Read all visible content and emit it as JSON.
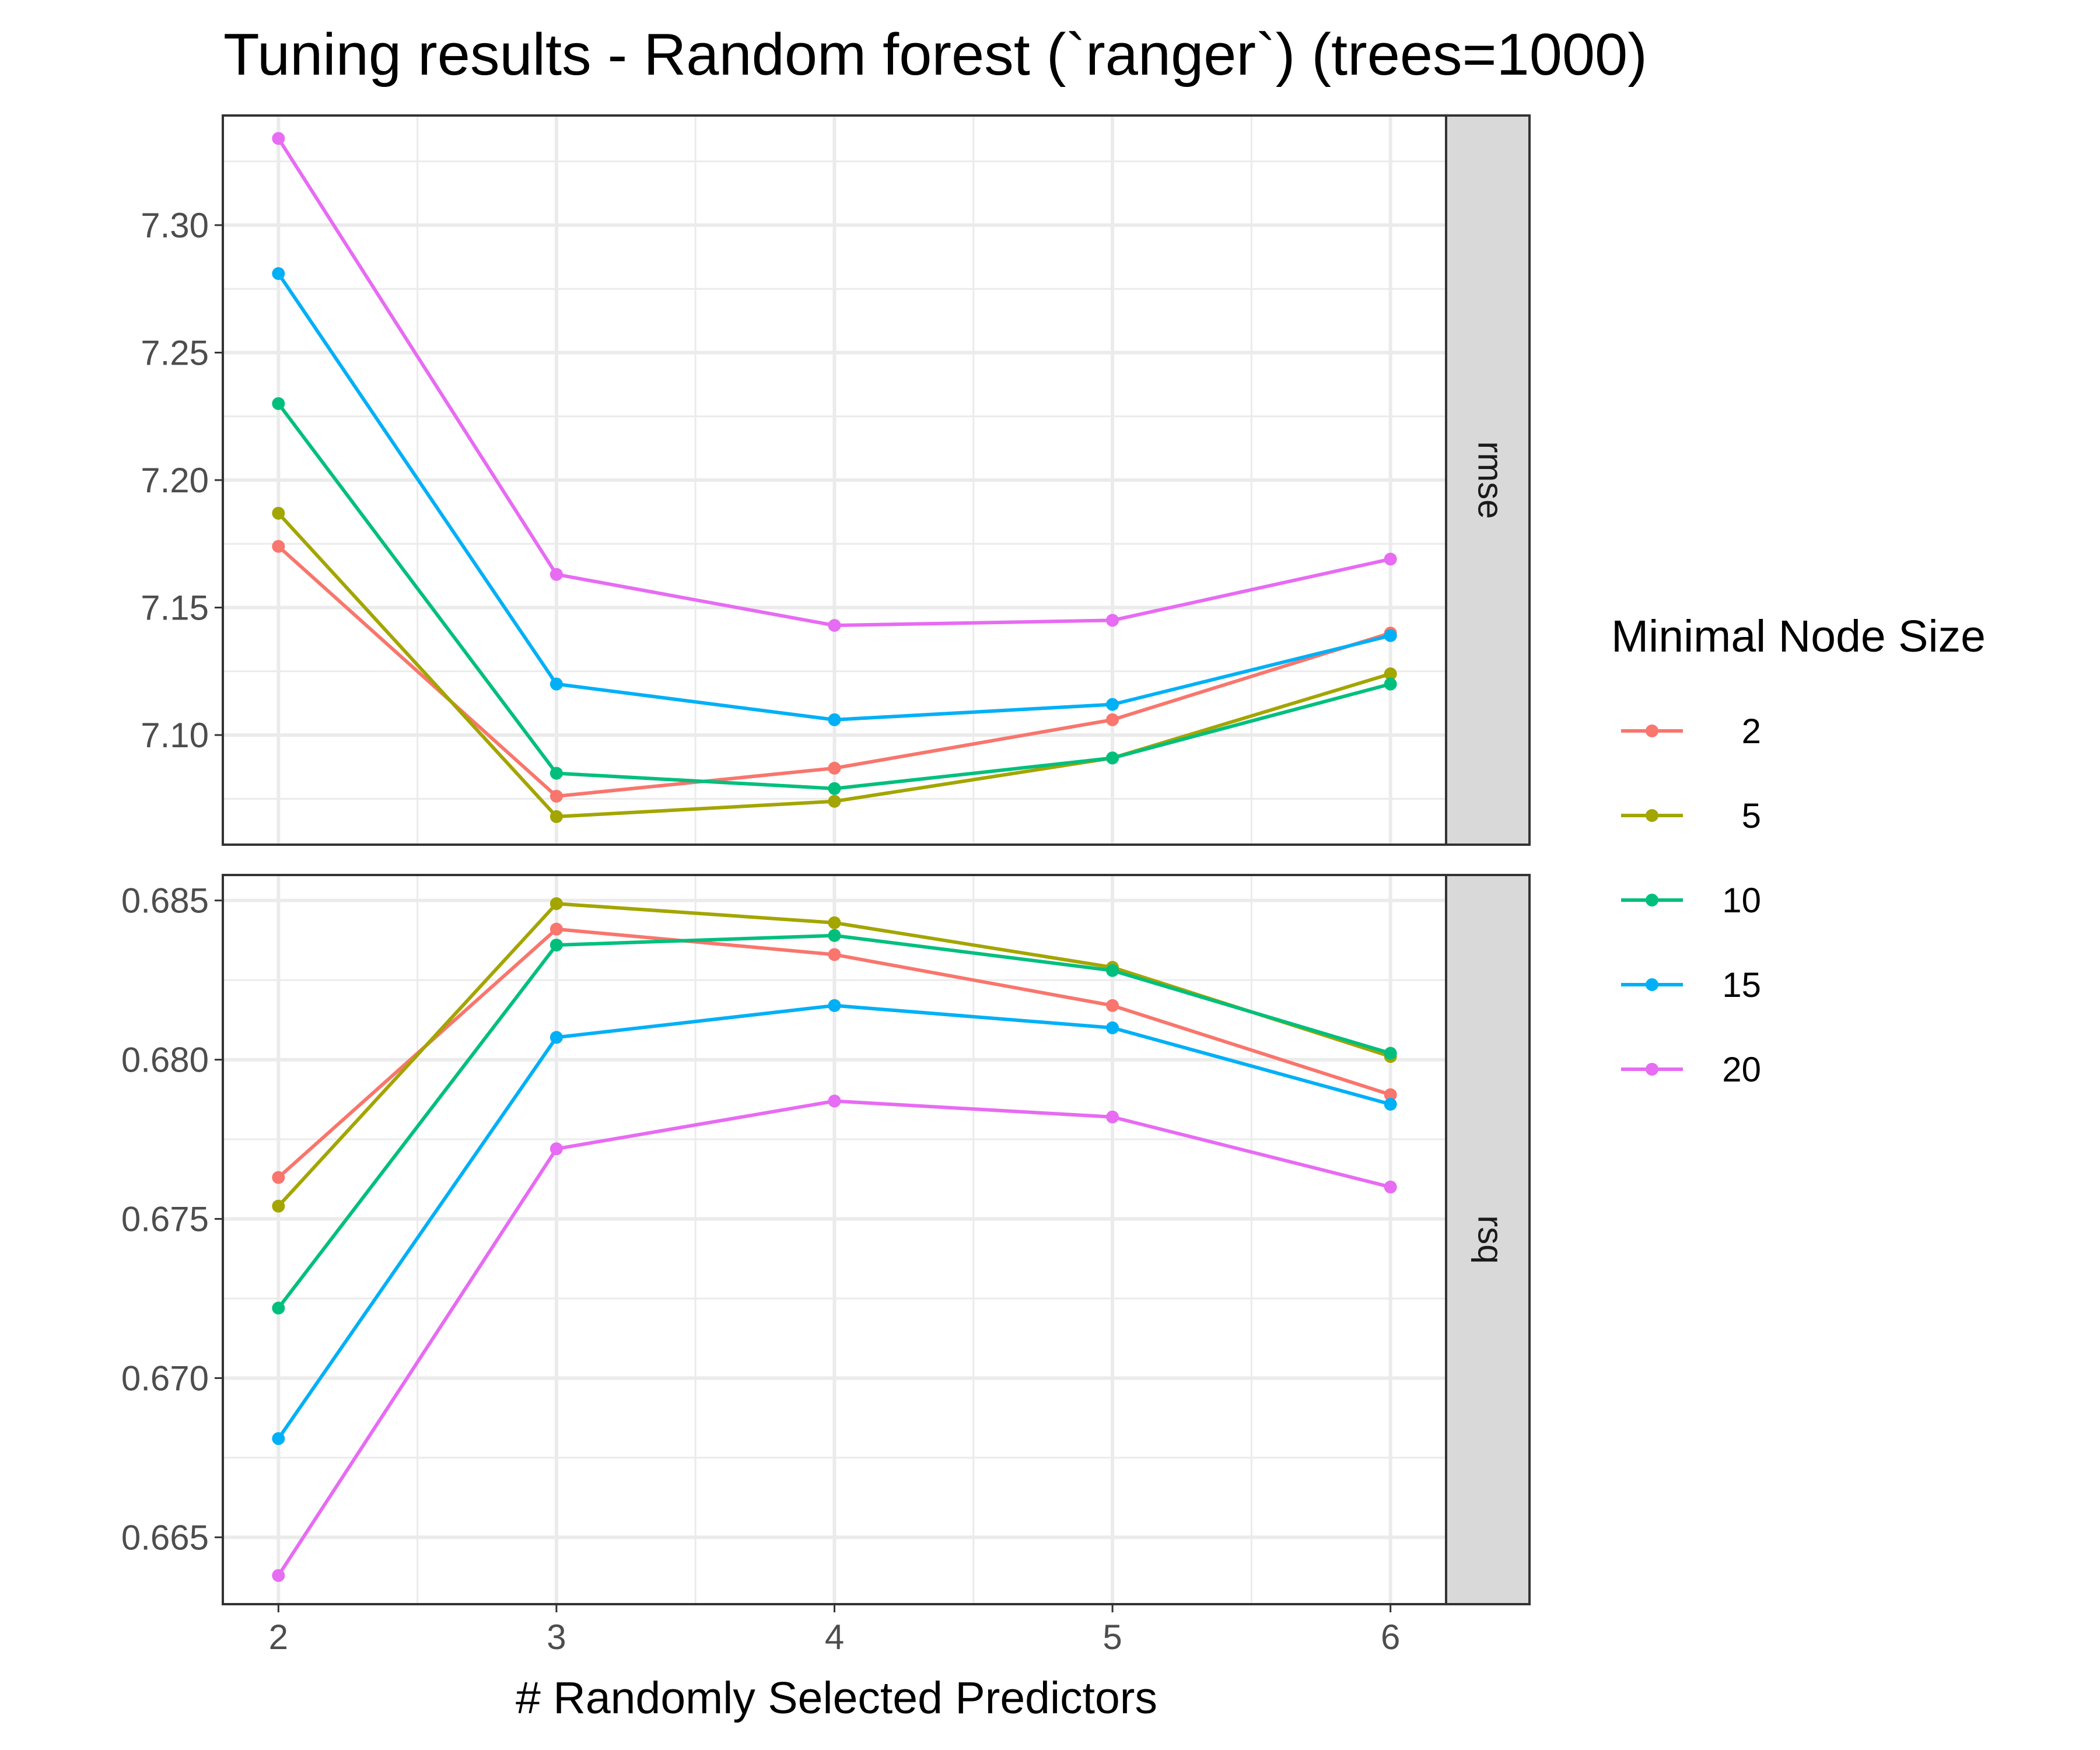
{
  "chart_data": {
    "type": "line",
    "title": "Tuning results - Random forest (`ranger`) (trees=1000)",
    "xlabel": "# Randomly Selected Predictors",
    "x": [
      2,
      3,
      4,
      5,
      6
    ],
    "x_ticks": [
      "2",
      "3",
      "4",
      "5",
      "6"
    ],
    "xlim": [
      1.8,
      6.2
    ],
    "grid": true,
    "legend": {
      "title": "Minimal Node Size",
      "placement": "right",
      "entries": [
        "2",
        "5",
        "10",
        "15",
        "20"
      ]
    },
    "colors": {
      "2": "#F8766D",
      "5": "#A3A500",
      "10": "#00BF7D",
      "15": "#00B0F6",
      "20": "#E76BF3"
    },
    "panels": [
      {
        "strip": "rmse",
        "ylim": [
          7.057,
          7.343
        ],
        "y_ticks": [
          "7.10",
          "7.15",
          "7.20",
          "7.25",
          "7.30"
        ],
        "y_tick_values": [
          7.1,
          7.15,
          7.2,
          7.25,
          7.3
        ],
        "series": [
          {
            "name": "2",
            "values": [
              7.174,
              7.076,
              7.087,
              7.106,
              7.14
            ]
          },
          {
            "name": "5",
            "values": [
              7.187,
              7.068,
              7.074,
              7.091,
              7.124
            ]
          },
          {
            "name": "10",
            "values": [
              7.23,
              7.085,
              7.079,
              7.091,
              7.12
            ]
          },
          {
            "name": "15",
            "values": [
              7.281,
              7.12,
              7.106,
              7.112,
              7.139
            ]
          },
          {
            "name": "20",
            "values": [
              7.334,
              7.163,
              7.143,
              7.145,
              7.169
            ]
          }
        ]
      },
      {
        "strip": "rsq",
        "ylim": [
          0.6629,
          0.6858
        ],
        "y_ticks": [
          "0.665",
          "0.670",
          "0.675",
          "0.680",
          "0.685"
        ],
        "y_tick_values": [
          0.665,
          0.67,
          0.675,
          0.68,
          0.685
        ],
        "series": [
          {
            "name": "2",
            "values": [
              0.6763,
              0.6841,
              0.6833,
              0.6817,
              0.6789
            ]
          },
          {
            "name": "5",
            "values": [
              0.6754,
              0.6849,
              0.6843,
              0.6829,
              0.6801
            ]
          },
          {
            "name": "10",
            "values": [
              0.6722,
              0.6836,
              0.6839,
              0.6828,
              0.6802
            ]
          },
          {
            "name": "15",
            "values": [
              0.6681,
              0.6807,
              0.6817,
              0.681,
              0.6786
            ]
          },
          {
            "name": "20",
            "values": [
              0.6638,
              0.6772,
              0.6787,
              0.6782,
              0.676
            ]
          }
        ]
      }
    ]
  }
}
